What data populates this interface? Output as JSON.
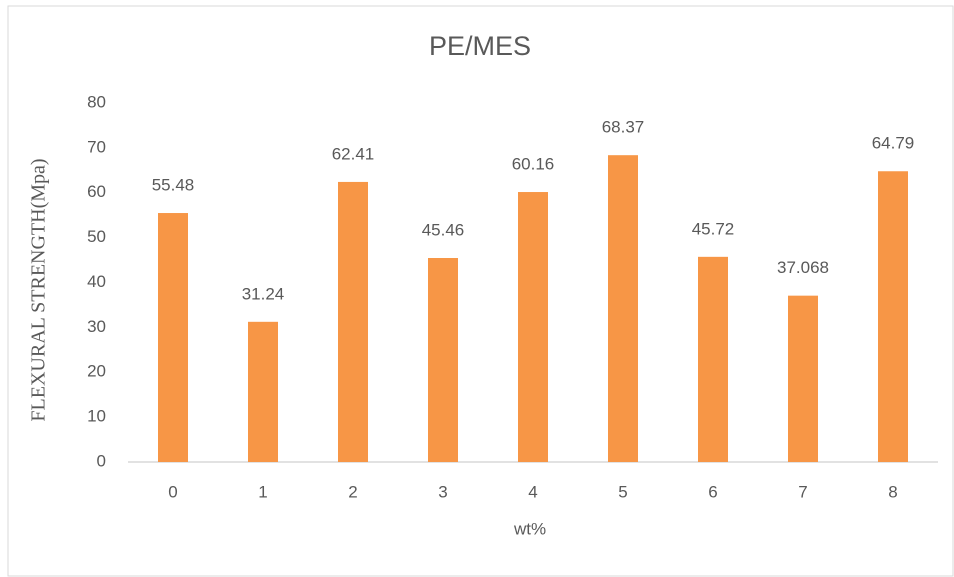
{
  "chart_data": {
    "type": "bar",
    "title": "PE/MES",
    "x_label": "wt%",
    "y_label": "FLEXURAL STRENGTH(Mpa)",
    "categories": [
      "0",
      "1",
      "2",
      "3",
      "4",
      "5",
      "6",
      "7",
      "8"
    ],
    "values": [
      55.48,
      31.24,
      62.41,
      45.46,
      60.16,
      68.37,
      45.72,
      37.068,
      64.79
    ],
    "color": "#f79646",
    "ylim": [
      0,
      80
    ],
    "yticks": [
      0,
      10,
      20,
      30,
      40,
      50,
      60,
      70,
      80
    ],
    "grid": false,
    "data_labels": true
  }
}
